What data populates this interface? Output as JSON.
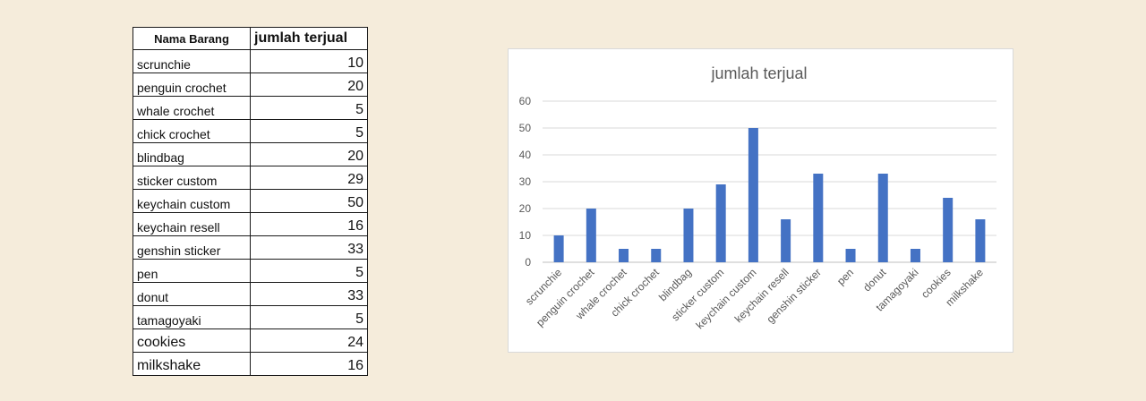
{
  "table": {
    "headers": [
      "Nama Barang",
      "jumlah terjual"
    ],
    "rows": [
      {
        "name": "scrunchie",
        "value": "10"
      },
      {
        "name": "penguin crochet",
        "value": "20"
      },
      {
        "name": "whale crochet",
        "value": "5"
      },
      {
        "name": "chick crochet",
        "value": "5"
      },
      {
        "name": "blindbag",
        "value": "20"
      },
      {
        "name": "sticker custom",
        "value": "29"
      },
      {
        "name": "keychain custom",
        "value": "50"
      },
      {
        "name": "keychain resell",
        "value": "16"
      },
      {
        "name": "genshin sticker",
        "value": "33"
      },
      {
        "name": "pen",
        "value": "5"
      },
      {
        "name": "donut",
        "value": "33"
      },
      {
        "name": "tamagoyaki",
        "value": "5"
      },
      {
        "name": "cookies",
        "value": "24"
      },
      {
        "name": "milkshake",
        "value": "16"
      }
    ]
  },
  "chart_data": {
    "type": "bar",
    "title": "jumlah terjual",
    "categories": [
      "scrunchie",
      "penguin crochet",
      "whale crochet",
      "chick crochet",
      "blindbag",
      "sticker custom",
      "keychain custom",
      "keychain resell",
      "genshin sticker",
      "pen",
      "donut",
      "tamagoyaki",
      "cookies",
      "milkshake"
    ],
    "values": [
      10,
      20,
      5,
      5,
      20,
      29,
      50,
      16,
      33,
      5,
      33,
      5,
      24,
      16
    ],
    "yticks": [
      "0",
      "10",
      "20",
      "30",
      "40",
      "50",
      "60"
    ],
    "ylim": [
      0,
      60
    ],
    "grid": true,
    "legend": "none",
    "bar_color": "#4472c4"
  }
}
